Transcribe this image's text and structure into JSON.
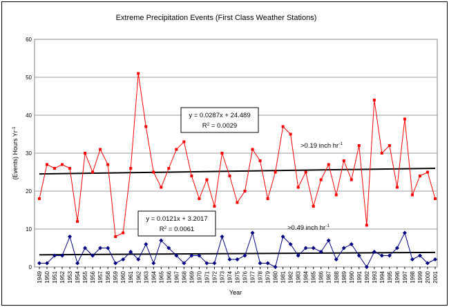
{
  "chart_data": {
    "type": "line",
    "title": "Extreme Precipitation Events (First Class Weather Stations)",
    "xlabel": "Year",
    "ylabel": "(Events) Hours Yr",
    "ylabel_superscript": "-1",
    "ylim": [
      0,
      60
    ],
    "yticks": [
      0,
      10,
      20,
      30,
      40,
      50,
      60
    ],
    "grid": true,
    "x": [
      1949,
      1950,
      1951,
      1952,
      1953,
      1954,
      1955,
      1956,
      1957,
      1958,
      1959,
      1960,
      1961,
      1962,
      1963,
      1964,
      1965,
      1966,
      1967,
      1968,
      1969,
      1970,
      1971,
      1972,
      1973,
      1974,
      1975,
      1976,
      1977,
      1978,
      1979,
      1980,
      1981,
      1982,
      1983,
      1984,
      1985,
      1986,
      1987,
      1988,
      1989,
      1990,
      1991,
      1992,
      1993,
      1994,
      1995,
      1996,
      1997,
      1998,
      1999,
      2000,
      2001
    ],
    "series": [
      {
        "name": ">0.19 inch hr",
        "name_superscript": "-1",
        "color": "#ff0000",
        "marker": "square",
        "values": [
          18,
          27,
          26,
          27,
          26,
          12,
          30,
          25,
          31,
          27,
          8,
          9,
          26,
          51,
          37,
          25,
          21,
          26,
          31,
          33,
          24,
          18,
          23,
          16,
          30,
          24,
          17,
          20,
          31,
          28,
          18,
          25,
          37,
          35,
          21,
          25,
          16,
          23,
          27,
          19,
          28,
          23,
          32,
          11,
          44,
          30,
          32,
          21,
          39,
          19,
          24,
          25,
          18
        ],
        "trend": {
          "slope": 0.0287,
          "intercept": 24.489,
          "equation": "y = 0.0287x + 24.489",
          "r2_label": "R",
          "r2_value": " = 0.0029"
        }
      },
      {
        "name": ">0.49 inch hr",
        "name_superscript": "-1",
        "color": "#000080",
        "marker": "diamond",
        "values": [
          1,
          1,
          3,
          3,
          8,
          1,
          5,
          3,
          5,
          5,
          1,
          2,
          4,
          2,
          6,
          1,
          7,
          5,
          3,
          1,
          3,
          3,
          1,
          1,
          8,
          2,
          2,
          3,
          9,
          1,
          1,
          0,
          8,
          6,
          3,
          5,
          5,
          4,
          7,
          2,
          5,
          6,
          3,
          0,
          4,
          3,
          3,
          5,
          9,
          2,
          3,
          1,
          2
        ],
        "trend": {
          "slope": 0.0121,
          "intercept": 3.2017,
          "equation": "y = 0.0121x + 3.2017",
          "r2_label": "R",
          "r2_value": " = 0.0061"
        }
      }
    ]
  }
}
